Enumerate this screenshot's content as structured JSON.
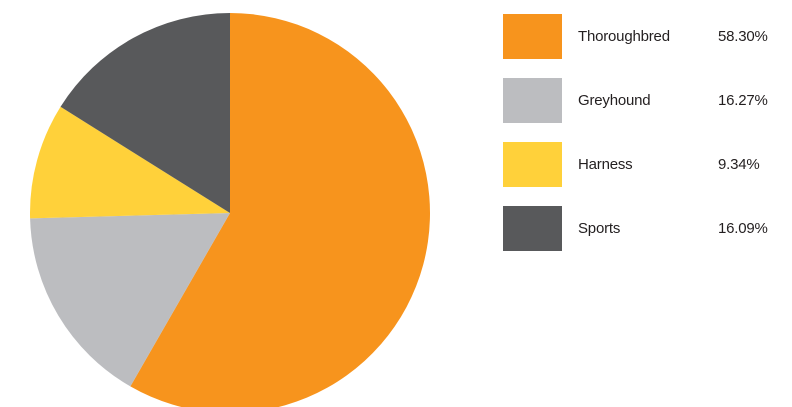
{
  "chart_data": {
    "type": "pie",
    "title": "",
    "slices": [
      {
        "label": "Thoroughbred",
        "value": 58.3,
        "display": "58.30%",
        "color": "#f7941d"
      },
      {
        "label": "Greyhound",
        "value": 16.27,
        "display": "16.27%",
        "color": "#bcbdc0"
      },
      {
        "label": "Harness",
        "value": 9.34,
        "display": "9.34%",
        "color": "#ffd13a"
      },
      {
        "label": "Sports",
        "value": 16.09,
        "display": "16.09%",
        "color": "#58595b"
      }
    ],
    "start_angle": "12 o'clock",
    "direction": "clockwise",
    "legend_placement": "right"
  }
}
